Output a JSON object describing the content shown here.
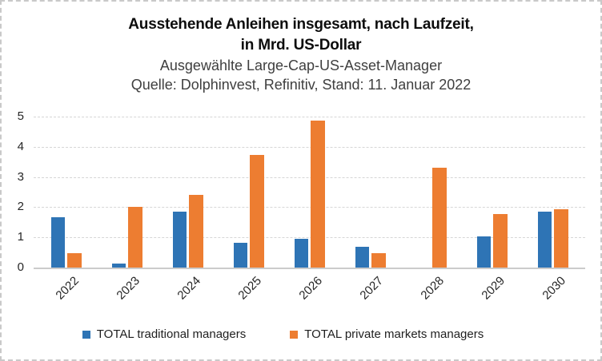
{
  "header": {
    "title_line1": "Ausstehende Anleihen insgesamt, nach Laufzeit,",
    "title_line2": "in Mrd. US-Dollar",
    "subtitle": "Ausgewählte Large-Cap-US-Asset-Manager",
    "source": "Quelle: Dolphinvest, Refinitiv, Stand: 11. Januar 2022"
  },
  "chart_data": {
    "type": "bar",
    "categories": [
      "2022",
      "2023",
      "2024",
      "2025",
      "2026",
      "2027",
      "2028",
      "2029",
      "2030"
    ],
    "series": [
      {
        "name": "TOTAL traditional managers",
        "color": "#2e74b5",
        "values": [
          1.67,
          0.13,
          1.86,
          0.81,
          0.94,
          0.7,
          0,
          1.02,
          1.85
        ]
      },
      {
        "name": "TOTAL private markets managers",
        "color": "#ed7d31",
        "values": [
          0.48,
          2.02,
          2.42,
          3.72,
          4.88,
          0.48,
          3.31,
          1.77,
          1.93
        ]
      }
    ],
    "title": "Ausstehende Anleihen insgesamt, nach Laufzeit, in Mrd. US-Dollar",
    "subtitle": "Ausgewählte Large-Cap-US-Asset-Manager",
    "source": "Quelle: Dolphinvest, Refinitiv, Stand: 11. Januar 2022",
    "xlabel": "",
    "ylabel": "",
    "ylim": [
      0,
      5
    ],
    "yticks": [
      "0",
      "1",
      "2",
      "3",
      "4",
      "5"
    ],
    "grid": "horizontal-dashed",
    "legend_position": "bottom",
    "gridline_color": "#d6d6d6",
    "axis_line_color": "#cbcbcb"
  }
}
